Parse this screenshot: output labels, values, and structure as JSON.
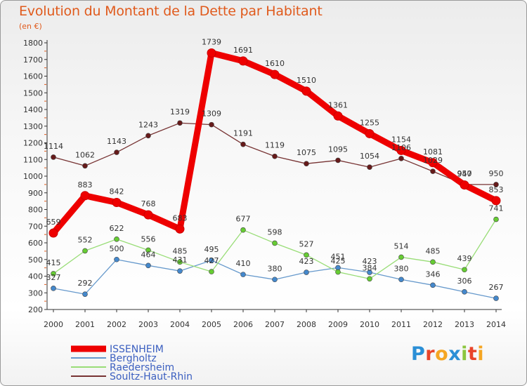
{
  "title": "Evolution du Montant de la Dette par Habitant",
  "subtitle": "(en €)",
  "logo": {
    "text": "Proxiti",
    "letter_colors": [
      "#2b8fd6",
      "#e8442a",
      "#f5a623",
      "#2b8fd6",
      "#8cc63f",
      "#e8442a",
      "#f5a623"
    ]
  },
  "chart_data": {
    "type": "line",
    "title": "Evolution du Montant de la Dette par Habitant",
    "subtitle": "(en €)",
    "x": [
      "2000",
      "2001",
      "2002",
      "2003",
      "2004",
      "2005",
      "2006",
      "2007",
      "2008",
      "2009",
      "2010",
      "2011",
      "2012",
      "2013",
      "2014"
    ],
    "yticks": [
      200,
      300,
      400,
      500,
      600,
      700,
      800,
      900,
      1000,
      1100,
      1200,
      1300,
      1400,
      1500,
      1600,
      1700,
      1800
    ],
    "ylim": [
      200,
      1800
    ],
    "grid": false,
    "legend_position": "bottom-left",
    "series": [
      {
        "name": "ISSENHEIM",
        "color": "#ee0000",
        "marker_color": "#ee0000",
        "values": [
          659,
          883,
          842,
          768,
          683,
          1739,
          1691,
          1610,
          1510,
          1361,
          1255,
          1154,
          1081,
          947,
          853
        ]
      },
      {
        "name": "Bergholtz",
        "color": "#6699cc",
        "marker_color": "#4488cc",
        "values": [
          327,
          292,
          500,
          464,
          431,
          495,
          410,
          380,
          423,
          451,
          423,
          380,
          346,
          306,
          267
        ]
      },
      {
        "name": "Raedersheim",
        "color": "#99dd77",
        "marker_color": "#66cc33",
        "values": [
          415,
          552,
          622,
          556,
          485,
          427,
          677,
          598,
          527,
          425,
          384,
          514,
          485,
          439,
          741
        ]
      },
      {
        "name": "Soultz-Haut-Rhin",
        "color": "#773333",
        "marker_color": "#661a1a",
        "values": [
          1114,
          1062,
          1143,
          1243,
          1319,
          1309,
          1191,
          1119,
          1075,
          1095,
          1054,
          1106,
          1029,
          950,
          950
        ]
      }
    ]
  }
}
